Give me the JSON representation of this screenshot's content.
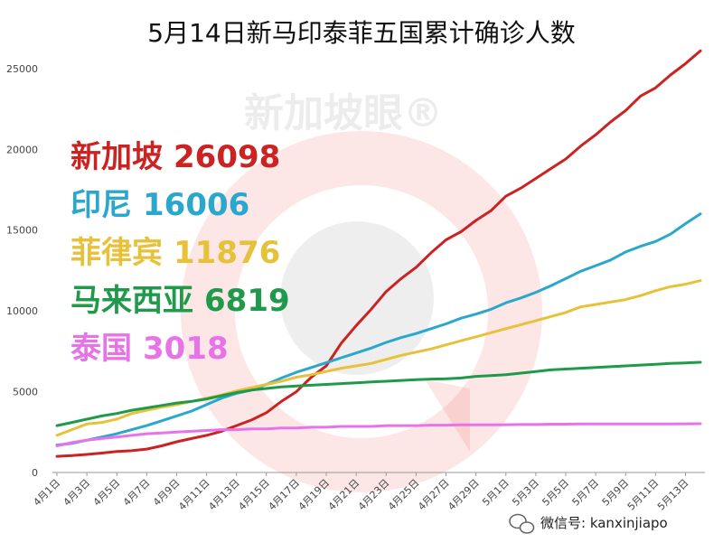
{
  "title": "5月14日新马印泰菲五国累计确诊人数",
  "watermark": "新加坡眼®",
  "credit": "微信号: kanxinjiapo",
  "colors": {
    "singapore": "#cc2222",
    "india": "#2aa7cc",
    "philippines": "#e8c13a",
    "malaysia": "#1f9a4a",
    "thailand": "#e873e8",
    "watermark_red": "#e53935"
  },
  "icons": {
    "credit_icon": "wechat-icon"
  },
  "chart_data": {
    "type": "line",
    "title": "5月14日新马印泰菲五国累计确诊人数",
    "xlabel": "",
    "ylabel": "",
    "ylim": [
      0,
      26000
    ],
    "y_ticks": [
      0,
      5000,
      10000,
      15000,
      20000,
      25000
    ],
    "grid": false,
    "x_tick_labels": [
      "4月1日",
      "4月3日",
      "4月5日",
      "4月7日",
      "4月9日",
      "4月11日",
      "4月13日",
      "4月15日",
      "4月17日",
      "4月19日",
      "4月21日",
      "4月23日",
      "4月25日",
      "4月27日",
      "4月29日",
      "5月1日",
      "5月3日",
      "5月5日",
      "5月7日",
      "5月9日",
      "5月11日",
      "5月13日"
    ],
    "x": [
      "4月1日",
      "4月2日",
      "4月3日",
      "4月4日",
      "4月5日",
      "4月6日",
      "4月7日",
      "4月8日",
      "4月9日",
      "4月10日",
      "4月11日",
      "4月12日",
      "4月13日",
      "4月14日",
      "4月15日",
      "4月16日",
      "4月17日",
      "4月18日",
      "4月19日",
      "4月20日",
      "4月21日",
      "4月22日",
      "4月23日",
      "4月24日",
      "4月25日",
      "4月26日",
      "4月27日",
      "4月28日",
      "4月29日",
      "4月30日",
      "5月1日",
      "5月2日",
      "5月3日",
      "5月4日",
      "5月5日",
      "5月6日",
      "5月7日",
      "5月8日",
      "5月9日",
      "5月10日",
      "5月11日",
      "5月12日",
      "5月13日",
      "5月14日"
    ],
    "series": [
      {
        "name": "新加坡",
        "key": "singapore",
        "label_value": "26098",
        "values": [
          1000,
          1050,
          1120,
          1200,
          1300,
          1350,
          1450,
          1650,
          1900,
          2100,
          2300,
          2550,
          2900,
          3250,
          3700,
          4400,
          5000,
          5900,
          6600,
          8000,
          9100,
          10100,
          11200,
          12000,
          12700,
          13600,
          14400,
          14900,
          15600,
          16200,
          17100,
          17600,
          18200,
          18800,
          19400,
          20200,
          20900,
          21700,
          22400,
          23300,
          23800,
          24600,
          25300,
          26098
        ]
      },
      {
        "name": "印尼",
        "key": "india",
        "label_value": "16006",
        "values": [
          1700,
          1800,
          2000,
          2200,
          2400,
          2650,
          2900,
          3200,
          3500,
          3800,
          4200,
          4600,
          4900,
          5100,
          5450,
          5850,
          6200,
          6500,
          6800,
          7100,
          7400,
          7700,
          8050,
          8350,
          8600,
          8900,
          9200,
          9550,
          9800,
          10100,
          10500,
          10800,
          11150,
          11550,
          12000,
          12450,
          12800,
          13150,
          13650,
          14000,
          14300,
          14750,
          15400,
          16006
        ]
      },
      {
        "name": "菲律宾",
        "key": "philippines",
        "label_value": "11876",
        "values": [
          2300,
          2650,
          3000,
          3100,
          3300,
          3650,
          3850,
          4050,
          4200,
          4400,
          4600,
          4800,
          5050,
          5250,
          5450,
          5650,
          5900,
          6050,
          6250,
          6450,
          6600,
          6750,
          7000,
          7250,
          7450,
          7650,
          7900,
          8150,
          8400,
          8650,
          8900,
          9150,
          9400,
          9650,
          9900,
          10250,
          10400,
          10550,
          10700,
          10950,
          11250,
          11500,
          11650,
          11876
        ]
      },
      {
        "name": "马来西亚",
        "key": "malaysia",
        "label_value": "6819",
        "values": [
          2900,
          3100,
          3300,
          3500,
          3650,
          3850,
          4000,
          4150,
          4300,
          4400,
          4550,
          4750,
          4950,
          5100,
          5200,
          5300,
          5350,
          5400,
          5450,
          5500,
          5550,
          5600,
          5650,
          5700,
          5750,
          5780,
          5800,
          5850,
          5950,
          6000,
          6050,
          6150,
          6250,
          6350,
          6400,
          6450,
          6500,
          6550,
          6600,
          6650,
          6700,
          6750,
          6780,
          6819
        ]
      },
      {
        "name": "泰国",
        "key": "thailand",
        "label_value": "3018",
        "values": [
          1650,
          1850,
          2000,
          2100,
          2200,
          2300,
          2400,
          2450,
          2500,
          2550,
          2600,
          2650,
          2650,
          2700,
          2700,
          2750,
          2750,
          2800,
          2800,
          2850,
          2850,
          2850,
          2900,
          2900,
          2900,
          2930,
          2930,
          2950,
          2950,
          2950,
          2960,
          2970,
          2970,
          2990,
          2990,
          3000,
          3000,
          3000,
          3000,
          3000,
          3010,
          3010,
          3015,
          3018
        ]
      }
    ]
  }
}
